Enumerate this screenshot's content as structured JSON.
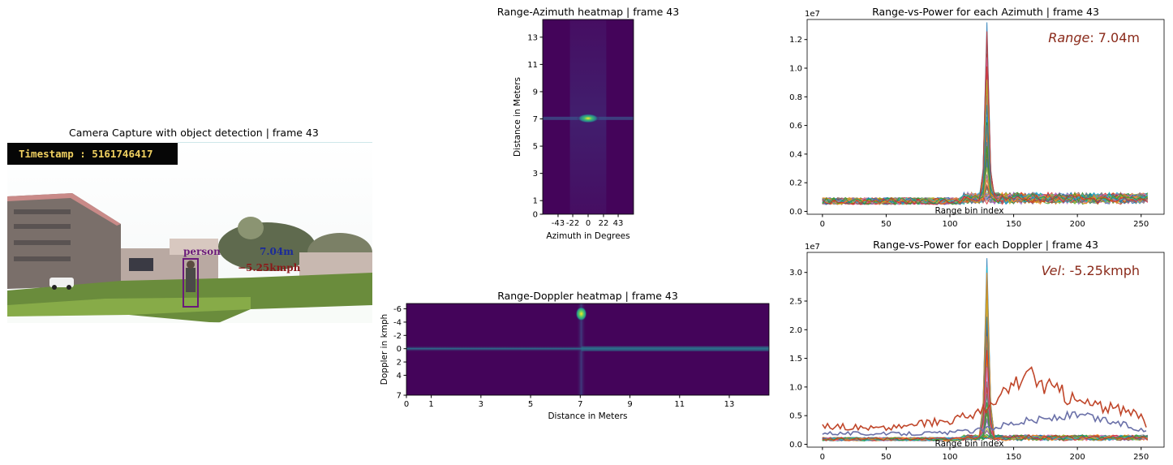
{
  "camera": {
    "title": "Camera Capture with object detection | frame 43",
    "timestamp": "Timestamp : 5161746417",
    "detection": {
      "label": "person",
      "range": "7.04m",
      "velocity": "−5.25kmph"
    },
    "colors": {
      "box": "#6a1a7a",
      "range": "#1a2a9a",
      "velocity": "#8a1a1a"
    }
  },
  "chart_data": [
    {
      "type": "heatmap",
      "title": "Range-Azimuth heatmap | frame 43",
      "xlabel": "Azimuth in Degrees",
      "ylabel": "Distance in Meters",
      "xticks": [
        "-43",
        "-22",
        "0",
        "22",
        "43"
      ],
      "yticks": [
        "0",
        "1",
        "3",
        "5",
        "7",
        "9",
        "11",
        "13"
      ],
      "xlim": [
        -65,
        65
      ],
      "ylim": [
        0,
        14.3
      ],
      "hotspot": {
        "azimuth": 0,
        "distance": 7.04
      },
      "colormap": "viridis"
    },
    {
      "type": "heatmap",
      "title": "Range-Doppler heatmap | frame 43",
      "xlabel": "Distance in Meters",
      "ylabel": "Doppler in kmph",
      "xticks": [
        "0",
        "1",
        "3",
        "5",
        "7",
        "9",
        "11",
        "13"
      ],
      "yticks": [
        "-6",
        "-4",
        "-2",
        "0",
        "2",
        "4",
        "7"
      ],
      "xlim": [
        0,
        14.6
      ],
      "ylim": [
        -6.8,
        7
      ],
      "hotspot": {
        "distance": 7.04,
        "doppler": -5.25
      },
      "zero_velocity_band": 0,
      "colormap": "viridis"
    },
    {
      "type": "line",
      "title": "Range-vs-Power for each Azimuth | frame 43",
      "xlabel": "Range bin index",
      "ylabel": "",
      "multiplier": "1e7",
      "annotation": {
        "label": "Range",
        "value": ": 7.04m"
      },
      "xticks": [
        0,
        50,
        100,
        150,
        200,
        250
      ],
      "yticks": [
        0.0,
        0.2,
        0.4,
        0.6,
        0.8,
        1.0,
        1.2
      ],
      "xlim": [
        -12,
        268
      ],
      "ylim": [
        -0.02,
        1.34
      ],
      "peak_bin": 129,
      "peak_value": 1.32,
      "baseline": 0.08,
      "series_count": 64
    },
    {
      "type": "line",
      "title": "Range-vs-Power for each Doppler | frame 43",
      "xlabel": "Range bin index",
      "ylabel": "",
      "multiplier": "1e7",
      "annotation": {
        "label": "Vel",
        "value": ": -5.25kmph"
      },
      "xticks": [
        0,
        50,
        100,
        150,
        200,
        250
      ],
      "yticks": [
        0.0,
        0.5,
        1.0,
        1.5,
        2.0,
        2.5,
        3.0
      ],
      "xlim": [
        -12,
        268
      ],
      "ylim": [
        -0.05,
        3.35
      ],
      "peak_bin": 129,
      "peak_value": 3.25,
      "baseline": 0.1,
      "series_count": 64,
      "highlighted_series": [
        {
          "color": "#c0462a",
          "values_by_bin": [
            [
              0,
              0.32
            ],
            [
              50,
              0.28
            ],
            [
              100,
              0.42
            ],
            [
              130,
              0.6
            ],
            [
              150,
              1.05
            ],
            [
              160,
              1.2
            ],
            [
              200,
              0.75
            ],
            [
              250,
              0.5
            ],
            [
              255,
              0.32
            ]
          ]
        },
        {
          "color": "#6a70a8",
          "values_by_bin": [
            [
              0,
              0.2
            ],
            [
              50,
              0.18
            ],
            [
              100,
              0.2
            ],
            [
              125,
              0.25
            ],
            [
              150,
              0.38
            ],
            [
              200,
              0.5
            ],
            [
              230,
              0.38
            ],
            [
              255,
              0.22
            ]
          ]
        }
      ]
    }
  ]
}
